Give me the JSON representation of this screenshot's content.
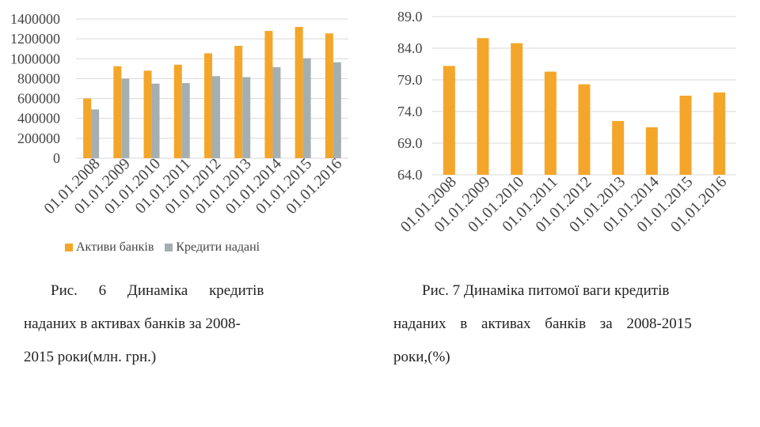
{
  "chart_data": [
    {
      "type": "bar",
      "categories": [
        "01.01.2008",
        "01.01.2009",
        "01.01.2010",
        "01.01.2011",
        "01.01.2012",
        "01.01.2013",
        "01.01.2014",
        "01.01.2015",
        "01.01.2016"
      ],
      "series": [
        {
          "name": "Активи банків",
          "values": [
            600000,
            925000,
            880000,
            940000,
            1055000,
            1130000,
            1280000,
            1320000,
            1255000
          ],
          "color": "#F4A62A"
        },
        {
          "name": "Кредити надані",
          "values": [
            490000,
            800000,
            750000,
            755000,
            825000,
            815000,
            915000,
            1005000,
            965000
          ],
          "color": "#A5AFB2"
        }
      ],
      "ylim": [
        0,
        1400000
      ],
      "yticks": [
        "1400000",
        "1200000",
        "1000000",
        "800000",
        "600000",
        "400000",
        "200000",
        "0"
      ],
      "ytick_values": [
        1400000,
        1200000,
        1000000,
        800000,
        600000,
        400000,
        200000,
        0
      ],
      "grid": true,
      "legend": "bottom"
    },
    {
      "type": "bar",
      "categories": [
        "01.01.2008",
        "01.01.2009",
        "01.01.2010",
        "01.01.2011",
        "01.01.2012",
        "01.01.2013",
        "01.01.2014",
        "01.01.2015",
        "01.01.2016"
      ],
      "series": [
        {
          "values": [
            81.2,
            85.6,
            84.8,
            80.3,
            78.3,
            72.5,
            71.5,
            76.5,
            77.0
          ],
          "color": "#F4A62A"
        }
      ],
      "ylim": [
        64,
        89
      ],
      "yticks": [
        "89.0",
        "84.0",
        "79.0",
        "74.0",
        "69.0",
        "64.0"
      ],
      "ytick_values": [
        89,
        84,
        79,
        74,
        69,
        64
      ],
      "grid": true
    }
  ],
  "captions": {
    "fig6": {
      "line1": "Рис. 6 Динаміка кредитів",
      "line2": "наданих в активах банків за 2008-",
      "line3": "2015 роки(млн. грн.)"
    },
    "fig7": {
      "line1": "Рис. 7 Динаміка питомої ваги кредитів",
      "line2": "наданих в активах банків за 2008-2015",
      "line3": "роки,(%)"
    }
  }
}
